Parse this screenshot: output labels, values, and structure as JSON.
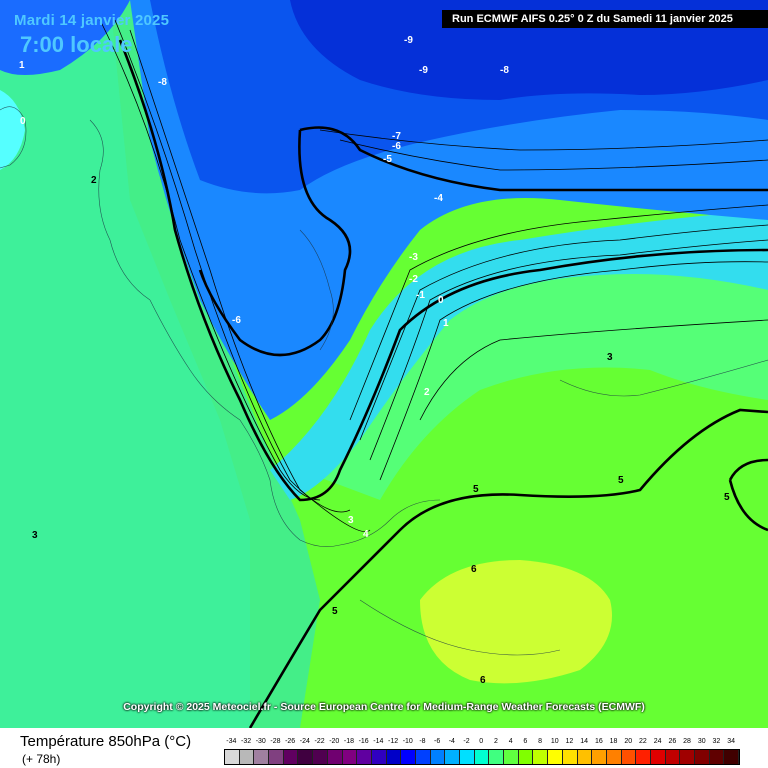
{
  "header": {
    "date": "Mardi 14 janvier 2025",
    "time": "7:00 locale",
    "run_info": "Run ECMWF AIFS 0.25° 0 Z du Samedi 11 janvier 2025"
  },
  "footer": {
    "copyright": "Copyright © 2025 Meteociel.fr - Source European Centre for Medium-Range Weather Forecasts (ECMWF)",
    "parameter": "Température 850hPa (°C)",
    "lead": "(+ 78h)"
  },
  "legend": {
    "ticks": [
      "-34",
      "-32",
      "-30",
      "-28",
      "-26",
      "-24",
      "-22",
      "-20",
      "-18",
      "-16",
      "-14",
      "-12",
      "-10",
      "-8",
      "-6",
      "-4",
      "-2",
      "0",
      "2",
      "4",
      "6",
      "8",
      "10",
      "12",
      "14",
      "16",
      "18",
      "20",
      "22",
      "24",
      "26",
      "28",
      "30",
      "32",
      "34"
    ],
    "colors": [
      "#d8d8d8",
      "#b8b8b8",
      "#a080a0",
      "#804080",
      "#600060",
      "#400040",
      "#500050",
      "#700070",
      "#800080",
      "#6000a0",
      "#3000c0",
      "#0000c8",
      "#0000ff",
      "#0040ff",
      "#0080ff",
      "#00b0ff",
      "#00e0ff",
      "#00ffd0",
      "#40ff80",
      "#60ff40",
      "#80ff00",
      "#c0ff00",
      "#ffff00",
      "#ffe000",
      "#ffc000",
      "#ffa000",
      "#ff8000",
      "#ff5000",
      "#ff2000",
      "#e00000",
      "#c00000",
      "#a00000",
      "#800000",
      "#600000",
      "#400000"
    ]
  },
  "isotherm_labels": [
    {
      "text": "-9"
    },
    {
      "text": "-9"
    },
    {
      "text": "-8"
    },
    {
      "text": "-8"
    },
    {
      "text": "-7"
    },
    {
      "text": "-6"
    },
    {
      "text": "-5"
    },
    {
      "text": "-4"
    },
    {
      "text": "-3"
    },
    {
      "text": "-2"
    },
    {
      "text": "-1"
    },
    {
      "text": "0"
    },
    {
      "text": "1"
    },
    {
      "text": "2"
    },
    {
      "text": "3"
    },
    {
      "text": "3"
    },
    {
      "text": "3"
    },
    {
      "text": "4"
    },
    {
      "text": "5"
    },
    {
      "text": "5"
    },
    {
      "text": "5"
    },
    {
      "text": "5"
    },
    {
      "text": "6"
    },
    {
      "text": "6"
    },
    {
      "text": "-6"
    },
    {
      "text": "0"
    },
    {
      "text": "1"
    },
    {
      "text": "2"
    }
  ]
}
